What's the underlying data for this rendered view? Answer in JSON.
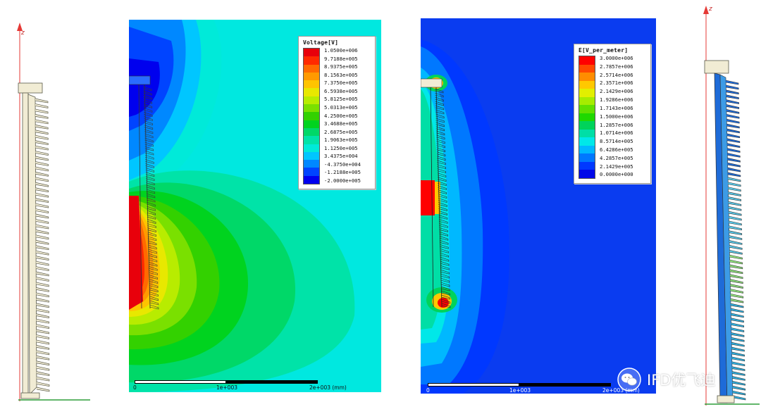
{
  "voltage_legend": {
    "title": "Voltage[V]",
    "values": [
      "1.0500e+006",
      "9.7188e+005",
      "8.9375e+005",
      "8.1563e+005",
      "7.3750e+005",
      "6.5938e+005",
      "5.8125e+005",
      "5.0313e+005",
      "4.2500e+005",
      "3.4688e+005",
      "2.6875e+005",
      "1.9063e+005",
      "1.1250e+005",
      "3.4375e+004",
      "-4.3750e+004",
      "-1.2188e+005",
      "-2.0000e+005"
    ],
    "colors": [
      "#e8000b",
      "#ff2a00",
      "#ff6a00",
      "#ff9a00",
      "#ffc400",
      "#e8e800",
      "#b8ec00",
      "#7ae000",
      "#33d100",
      "#00d31f",
      "#00d868",
      "#00e3a8",
      "#00ead9",
      "#00c6ff",
      "#0088ff",
      "#0044ff",
      "#0000ee"
    ]
  },
  "efield_legend": {
    "title": "E[V_per_meter]",
    "values": [
      "3.0000e+006",
      "2.7857e+006",
      "2.5714e+006",
      "2.3571e+006",
      "2.1429e+006",
      "1.9286e+006",
      "1.7143e+006",
      "1.5000e+006",
      "1.2857e+006",
      "1.0714e+006",
      "8.5714e+005",
      "6.4286e+005",
      "4.2857e+005",
      "2.1429e+005",
      "0.0000e+000"
    ],
    "colors": [
      "#ff0000",
      "#ff4800",
      "#ff8c00",
      "#ffc800",
      "#e2ef00",
      "#a6ec00",
      "#61e000",
      "#1fd800",
      "#00d35a",
      "#00dea6",
      "#00e8e8",
      "#00b8ff",
      "#0078ff",
      "#0038ff",
      "#0008e8"
    ]
  },
  "scalebar_left": {
    "labels": [
      "0",
      "1e+003",
      "2e+003 (mm)"
    ]
  },
  "scalebar_right": {
    "labels": [
      "0",
      "1e+003",
      "2e+003 (mm)"
    ]
  },
  "axis": {
    "z_label": "z"
  },
  "watermark": {
    "text": "IFD优飞迪",
    "icon": "wechat-icon"
  },
  "colors": {
    "field_background_voltage": "#00e8e0",
    "field_background_efield": "#0a3cf0",
    "insulator_fill": "#f1ecd4",
    "insulator_stroke": "#5a5a4a",
    "axis_red": "#e53935",
    "ground_green": "#2e9e3a"
  }
}
